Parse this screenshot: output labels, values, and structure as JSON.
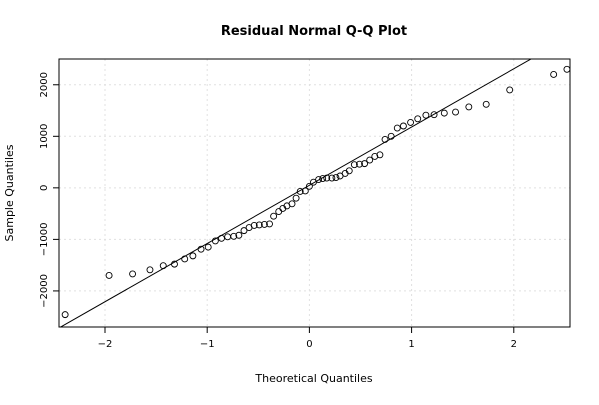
{
  "chart_data": {
    "type": "scatter",
    "title": "Residual Normal Q-Q Plot",
    "xlabel": "Theoretical Quantiles",
    "ylabel": "Sample Quantiles",
    "xlim": [
      -2.45,
      2.55
    ],
    "ylim": [
      -2700,
      2500
    ],
    "x_ticks": [
      -2,
      -1,
      0,
      1,
      2
    ],
    "x_tick_labels": [
      "−2",
      "−1",
      "0",
      "1",
      "2"
    ],
    "y_ticks": [
      -2000,
      -1000,
      0,
      1000,
      2000
    ],
    "y_tick_labels": [
      "−2000",
      "−1000",
      "0",
      "1000",
      "2000"
    ],
    "grid": true,
    "legend": "none",
    "reference_line": {
      "intercept": 50,
      "slope": 1130
    },
    "points": [
      [
        -2.39,
        -2460
      ],
      [
        -1.96,
        -1700
      ],
      [
        -1.73,
        -1670
      ],
      [
        -1.56,
        -1590
      ],
      [
        -1.43,
        -1510
      ],
      [
        -1.32,
        -1480
      ],
      [
        -1.22,
        -1380
      ],
      [
        -1.14,
        -1320
      ],
      [
        -1.06,
        -1190
      ],
      [
        -0.99,
        -1150
      ],
      [
        -0.92,
        -1030
      ],
      [
        -0.86,
        -980
      ],
      [
        -0.8,
        -950
      ],
      [
        -0.74,
        -940
      ],
      [
        -0.69,
        -920
      ],
      [
        -0.64,
        -830
      ],
      [
        -0.59,
        -770
      ],
      [
        -0.54,
        -730
      ],
      [
        -0.49,
        -720
      ],
      [
        -0.44,
        -710
      ],
      [
        -0.39,
        -700
      ],
      [
        -0.35,
        -550
      ],
      [
        -0.3,
        -460
      ],
      [
        -0.26,
        -400
      ],
      [
        -0.22,
        -350
      ],
      [
        -0.17,
        -310
      ],
      [
        -0.13,
        -200
      ],
      [
        -0.09,
        -70
      ],
      [
        -0.04,
        -60
      ],
      [
        0.0,
        30
      ],
      [
        0.04,
        110
      ],
      [
        0.09,
        160
      ],
      [
        0.13,
        180
      ],
      [
        0.17,
        190
      ],
      [
        0.22,
        190
      ],
      [
        0.26,
        200
      ],
      [
        0.3,
        230
      ],
      [
        0.35,
        280
      ],
      [
        0.39,
        330
      ],
      [
        0.44,
        450
      ],
      [
        0.49,
        460
      ],
      [
        0.54,
        470
      ],
      [
        0.59,
        540
      ],
      [
        0.64,
        610
      ],
      [
        0.69,
        640
      ],
      [
        0.74,
        940
      ],
      [
        0.8,
        1000
      ],
      [
        0.86,
        1160
      ],
      [
        0.92,
        1200
      ],
      [
        0.99,
        1270
      ],
      [
        1.06,
        1340
      ],
      [
        1.14,
        1410
      ],
      [
        1.22,
        1420
      ],
      [
        1.32,
        1450
      ],
      [
        1.43,
        1470
      ],
      [
        1.56,
        1570
      ],
      [
        1.73,
        1620
      ],
      [
        1.96,
        1900
      ],
      [
        2.39,
        2200
      ],
      [
        2.52,
        2300
      ]
    ]
  }
}
